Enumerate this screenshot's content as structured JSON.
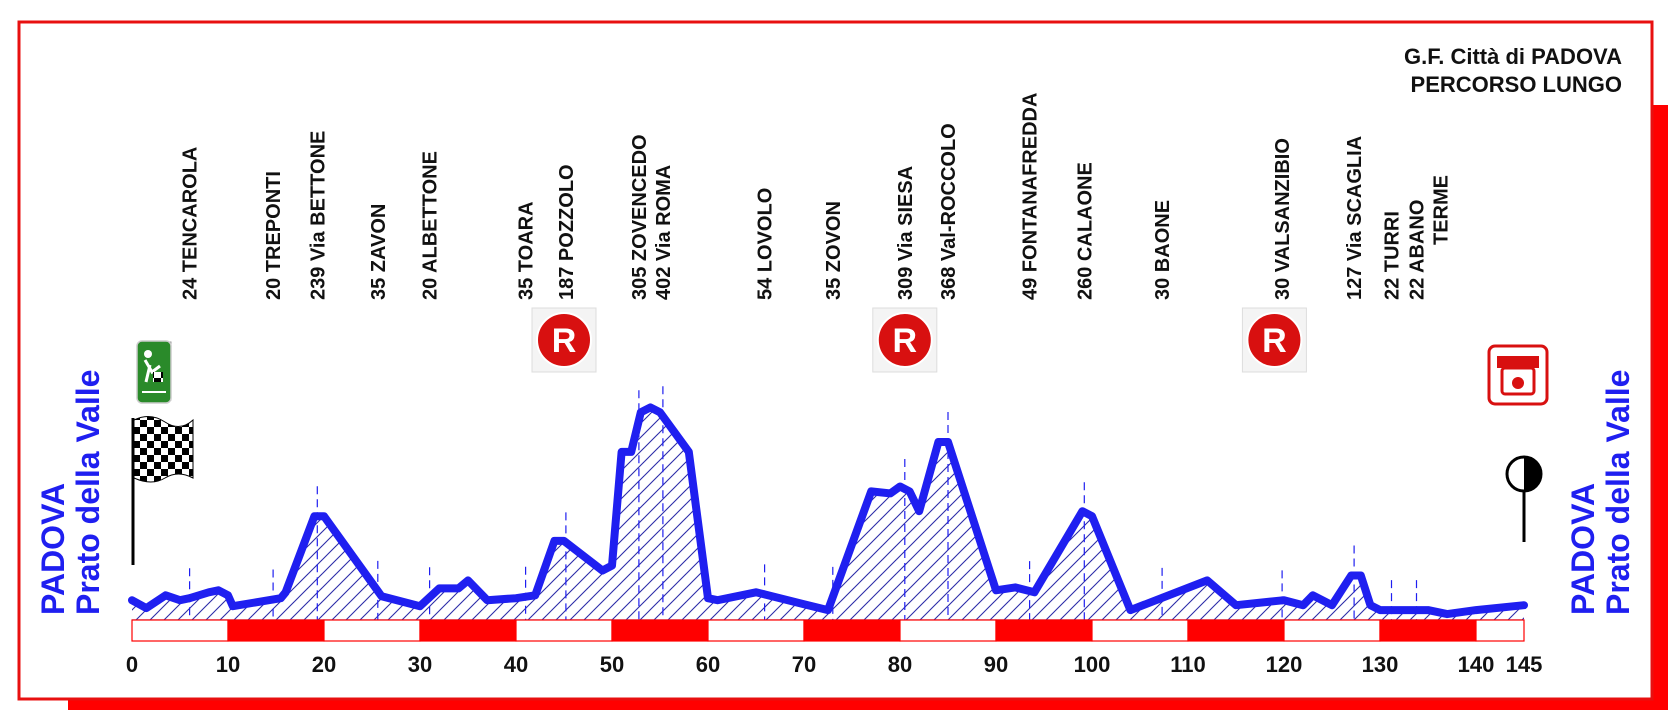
{
  "colors": {
    "profile": "#1f1ff0",
    "hatch": "#2c2ca8",
    "frame": "#e81010",
    "marker_red": "#ff0000",
    "refreshment": "#d81010",
    "start_green": "#2a8a2a"
  },
  "header": {
    "title_line1": "G.F. Città di PADOVA",
    "title_line2": "PERCORSO LUNGO"
  },
  "side_labels": {
    "start_city": "PADOVA",
    "start_place": "Prato della Valle",
    "end_city": "PADOVA",
    "end_place": "Prato della Valle"
  },
  "markers": {
    "refreshment_letter": "R",
    "refreshment_km": [
      45,
      80.5,
      119
    ],
    "start_icon": "start-checkered-flag-icon",
    "finish_icon": "finish-line-icon"
  },
  "chart_data": {
    "type": "area",
    "title": "G.F. Città di PADOVA",
    "subtitle": "PERCORSO LUNGO",
    "xlabel": "",
    "ylabel": "",
    "xlim": [
      0,
      145
    ],
    "ylim": [
      0,
      450
    ],
    "grid": false,
    "x_ticks": [
      0,
      10,
      20,
      30,
      40,
      50,
      60,
      70,
      80,
      90,
      100,
      110,
      120,
      130,
      140,
      145
    ],
    "profile": [
      [
        0,
        20
      ],
      [
        1.5,
        12
      ],
      [
        3.5,
        25
      ],
      [
        5,
        20
      ],
      [
        6,
        22
      ],
      [
        8,
        28
      ],
      [
        9,
        30
      ],
      [
        10,
        25
      ],
      [
        10.5,
        14
      ],
      [
        15.5,
        22
      ],
      [
        16,
        28
      ],
      [
        19,
        105
      ],
      [
        20,
        105
      ],
      [
        26,
        24
      ],
      [
        30,
        14
      ],
      [
        32,
        32
      ],
      [
        34,
        32
      ],
      [
        35,
        40
      ],
      [
        36,
        30
      ],
      [
        37,
        20
      ],
      [
        40,
        22
      ],
      [
        42,
        25
      ],
      [
        44,
        80
      ],
      [
        45,
        80
      ],
      [
        49,
        50
      ],
      [
        50,
        55
      ],
      [
        51,
        170
      ],
      [
        52,
        170
      ],
      [
        53,
        210
      ],
      [
        54,
        215
      ],
      [
        55,
        210
      ],
      [
        58,
        170
      ],
      [
        60,
        22
      ],
      [
        61,
        20
      ],
      [
        65,
        28
      ],
      [
        70,
        16
      ],
      [
        72.5,
        10
      ],
      [
        77,
        130
      ],
      [
        79,
        128
      ],
      [
        80,
        135
      ],
      [
        81,
        130
      ],
      [
        82,
        110
      ],
      [
        84,
        180
      ],
      [
        85,
        180
      ],
      [
        90,
        30
      ],
      [
        92,
        33
      ],
      [
        94,
        28
      ],
      [
        99,
        110
      ],
      [
        100,
        105
      ],
      [
        104,
        10
      ],
      [
        112,
        40
      ],
      [
        115,
        15
      ],
      [
        120,
        20
      ],
      [
        122,
        15
      ],
      [
        123,
        25
      ],
      [
        125,
        15
      ],
      [
        127,
        45
      ],
      [
        128,
        45
      ],
      [
        129,
        15
      ],
      [
        130,
        10
      ],
      [
        135,
        10
      ],
      [
        137,
        6
      ],
      [
        140,
        10
      ],
      [
        145,
        15
      ]
    ],
    "waypoints": [
      {
        "km": 6,
        "alt": 24,
        "name": "TENCAROLA"
      },
      {
        "km": 14.7,
        "alt": 20,
        "name": "TREPONTI"
      },
      {
        "km": 19.3,
        "alt": 239,
        "name": "Via BETTONE"
      },
      {
        "km": 25.6,
        "alt": 35,
        "name": "ZAVON"
      },
      {
        "km": 31,
        "alt": 20,
        "name": "ALBETTONE"
      },
      {
        "km": 41,
        "alt": 35,
        "name": "TOARA"
      },
      {
        "km": 45.2,
        "alt": 187,
        "name": "POZZOLO"
      },
      {
        "km": 52.8,
        "alt": 305,
        "name": "ZOVENCEDO"
      },
      {
        "km": 55.3,
        "alt": 402,
        "name": "Via ROMA"
      },
      {
        "km": 65.9,
        "alt": 54,
        "name": "LOVOLO"
      },
      {
        "km": 73,
        "alt": 35,
        "name": "ZOVON"
      },
      {
        "km": 80.5,
        "alt": 309,
        "name": "Via SIESA"
      },
      {
        "km": 85,
        "alt": 368,
        "name": "Val-ROCCOLO"
      },
      {
        "km": 93.5,
        "alt": 49,
        "name": "FONTANAFREDDA"
      },
      {
        "km": 99.2,
        "alt": 260,
        "name": "CALAONE"
      },
      {
        "km": 107.3,
        "alt": 30,
        "name": "BAONE"
      },
      {
        "km": 119.8,
        "alt": 30,
        "name": "VALSANZIBIO"
      },
      {
        "km": 127.3,
        "alt": 127,
        "name": "Via SCAGLIA"
      },
      {
        "km": 131.2,
        "alt": 22,
        "name": "TURRI"
      },
      {
        "km": 133.8,
        "alt": 22,
        "name": "ABANO TERME"
      }
    ]
  }
}
